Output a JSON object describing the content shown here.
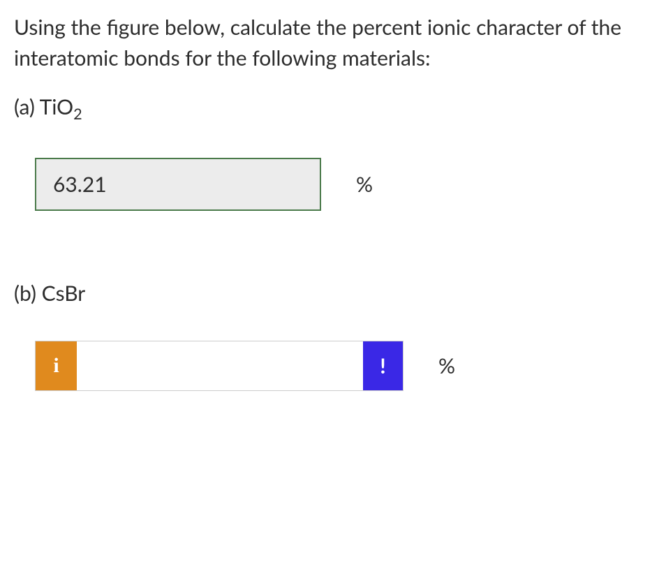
{
  "question": {
    "intro": "Using the figure below, calculate the percent ionic character of the interatomic bonds for the following materials:",
    "parts": {
      "a": {
        "label_prefix": "(a) TiO",
        "subscript": "2",
        "answer_value": "63.21",
        "unit": "%",
        "input_bg": "#ececec",
        "border_color": "#4a7a4a"
      },
      "b": {
        "label": "(b) CsBr",
        "answer_value": "",
        "unit": "%",
        "info_icon": "i",
        "alert_icon": "!",
        "info_bg": "#e08a1e",
        "alert_bg": "#3a28e6"
      }
    }
  }
}
